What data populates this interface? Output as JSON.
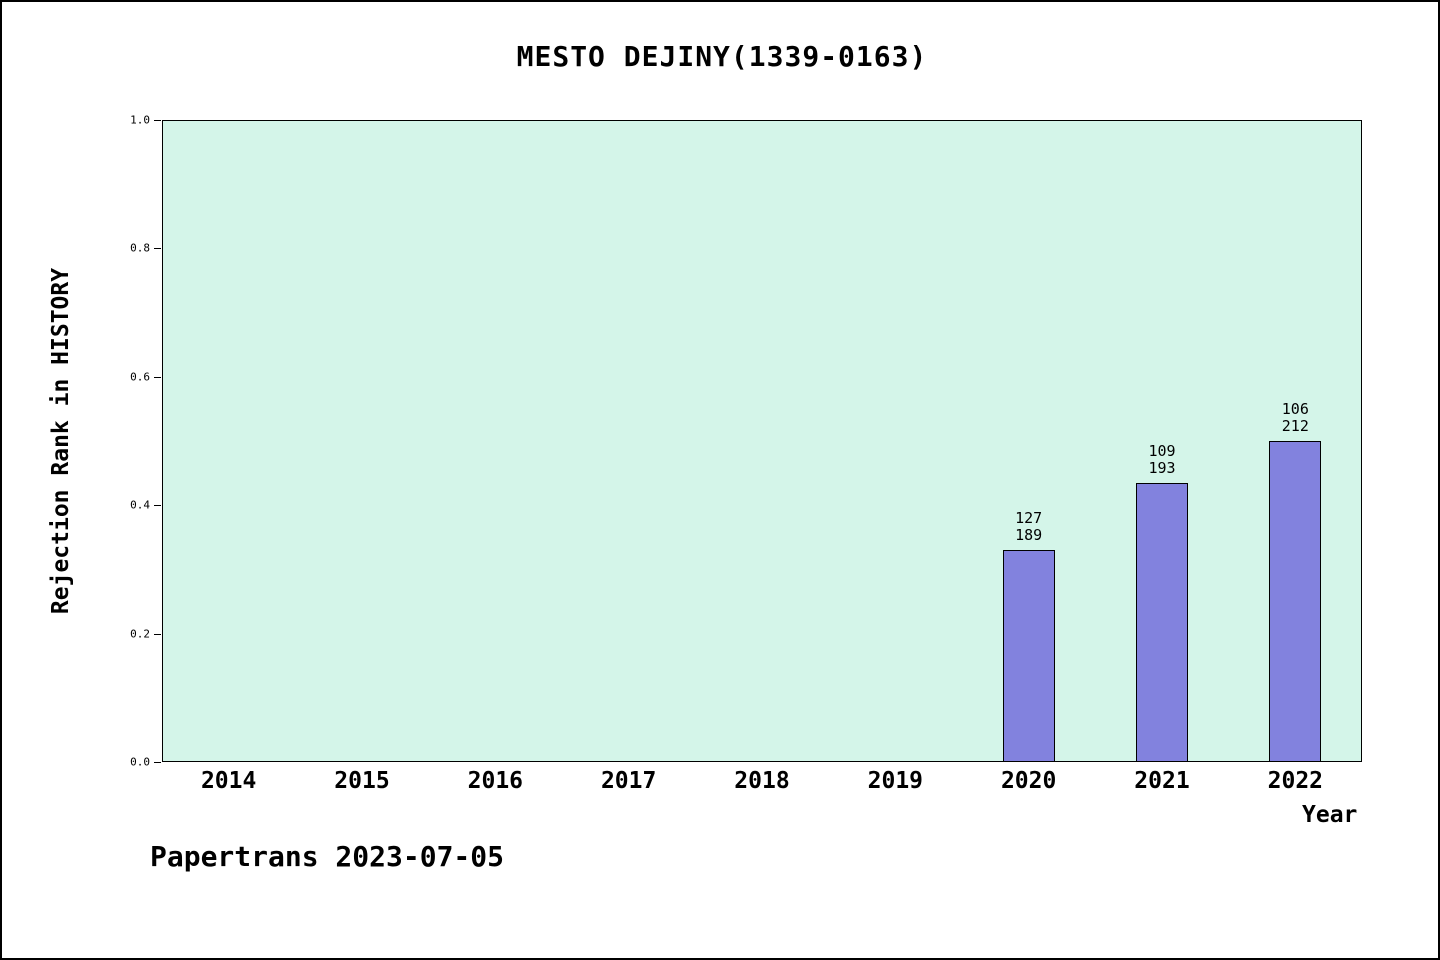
{
  "title": "MESTO DEJINY(1339-0163)",
  "footer": "Papertrans 2023-07-05",
  "chart_data": {
    "type": "bar",
    "title": "MESTO DEJINY(1339-0163)",
    "xlabel": "Year",
    "ylabel": "Rejection Rank in HISTORY",
    "ylim": [
      0.0,
      1.0
    ],
    "yticks": [
      0.0,
      0.2,
      0.4,
      0.6,
      0.8,
      1.0
    ],
    "grid": false,
    "legend": "none",
    "categories": [
      "2014",
      "2015",
      "2016",
      "2017",
      "2018",
      "2019",
      "2020",
      "2021",
      "2022"
    ],
    "values": [
      null,
      null,
      null,
      null,
      null,
      null,
      0.33,
      0.435,
      0.5
    ],
    "bar_labels": [
      null,
      null,
      null,
      null,
      null,
      null,
      "127\n189",
      "109\n193",
      "106\n212"
    ],
    "colors": {
      "plot_background": "#d4f5e9",
      "bar_fill": "#8282de",
      "bar_border": "#000000",
      "page_background": "#ffffff"
    },
    "annotation": "Papertrans 2023-07-05"
  }
}
